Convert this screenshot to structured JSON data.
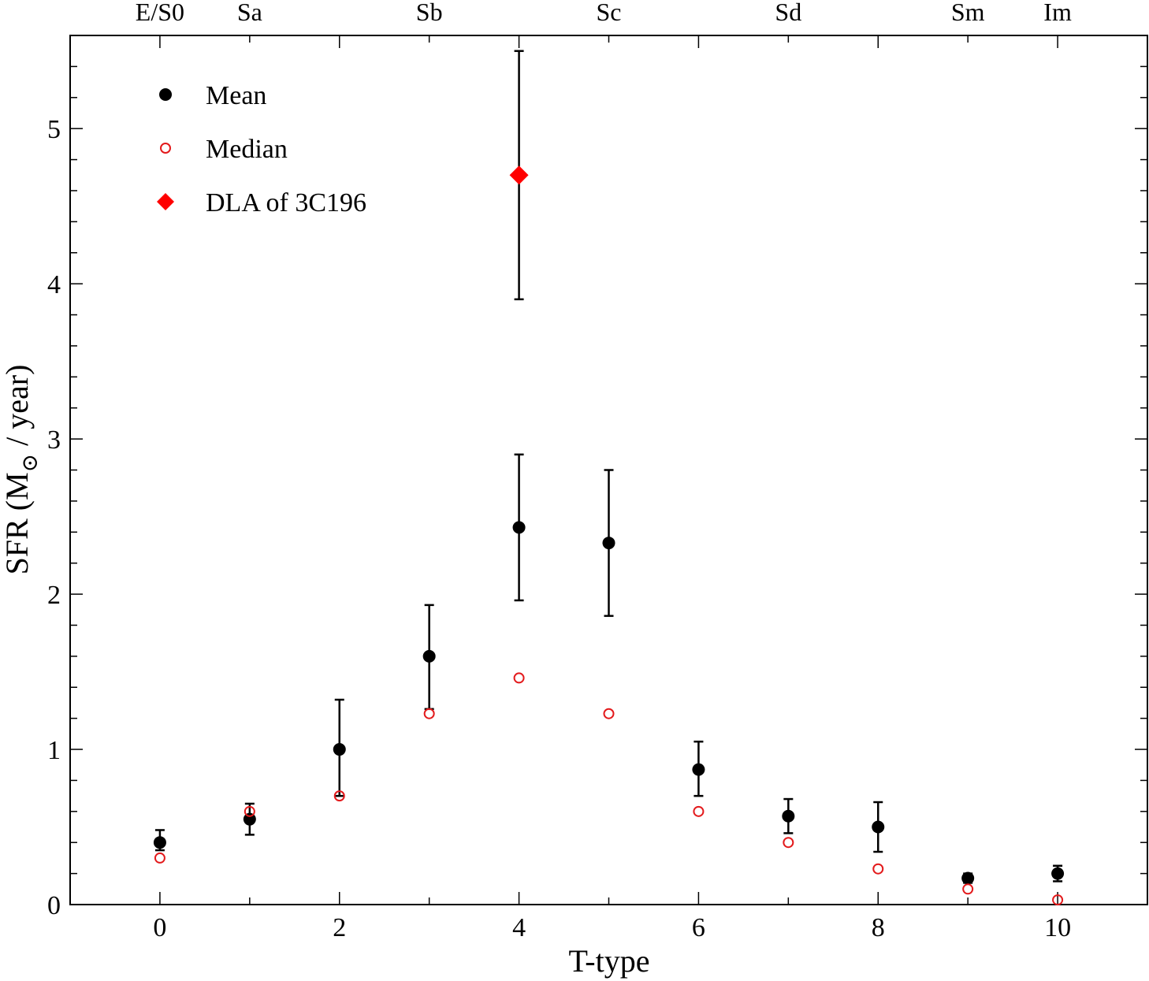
{
  "chart_data": {
    "type": "scatter",
    "xlabel": "T-type",
    "ylabel_main": "SFR (M",
    "ylabel_sun": "⊙",
    "ylabel_tail": " / year)",
    "xlim": [
      -1,
      11
    ],
    "ylim": [
      0,
      5.6
    ],
    "x_ticks": [
      0,
      2,
      4,
      6,
      8,
      10
    ],
    "y_ticks": [
      0,
      1,
      2,
      3,
      4,
      5
    ],
    "x_minor_step": 1,
    "y_minor_step": 0.2,
    "grid": false,
    "legend_position": "top-left",
    "top_axis_labels": [
      {
        "x": 0,
        "label": "E/S0"
      },
      {
        "x": 1,
        "label": "Sa"
      },
      {
        "x": 3,
        "label": "Sb"
      },
      {
        "x": 5,
        "label": "Sc"
      },
      {
        "x": 7,
        "label": "Sd"
      },
      {
        "x": 9,
        "label": "Sm"
      },
      {
        "x": 10,
        "label": "Im"
      }
    ],
    "series": [
      {
        "name": "Mean",
        "marker": "filled-circle",
        "color": "#000000",
        "points": [
          {
            "x": 0,
            "y": 0.4,
            "ylo": 0.35,
            "yhi": 0.48
          },
          {
            "x": 1,
            "y": 0.55,
            "ylo": 0.45,
            "yhi": 0.65
          },
          {
            "x": 2,
            "y": 1.0,
            "ylo": 0.7,
            "yhi": 1.32
          },
          {
            "x": 3,
            "y": 1.6,
            "ylo": 1.26,
            "yhi": 1.93
          },
          {
            "x": 4,
            "y": 2.43,
            "ylo": 1.96,
            "yhi": 2.9
          },
          {
            "x": 5,
            "y": 2.33,
            "ylo": 1.86,
            "yhi": 2.8
          },
          {
            "x": 6,
            "y": 0.87,
            "ylo": 0.7,
            "yhi": 1.05
          },
          {
            "x": 7,
            "y": 0.57,
            "ylo": 0.46,
            "yhi": 0.68
          },
          {
            "x": 8,
            "y": 0.5,
            "ylo": 0.34,
            "yhi": 0.66
          },
          {
            "x": 9,
            "y": 0.17,
            "ylo": 0.14,
            "yhi": 0.2
          },
          {
            "x": 10,
            "y": 0.2,
            "ylo": 0.15,
            "yhi": 0.25
          }
        ]
      },
      {
        "name": "Median",
        "marker": "open-circle",
        "color": "#e31a1c",
        "points": [
          {
            "x": 0,
            "y": 0.3
          },
          {
            "x": 1,
            "y": 0.6
          },
          {
            "x": 2,
            "y": 0.7
          },
          {
            "x": 3,
            "y": 1.23
          },
          {
            "x": 4,
            "y": 1.46
          },
          {
            "x": 5,
            "y": 1.23
          },
          {
            "x": 6,
            "y": 0.6
          },
          {
            "x": 7,
            "y": 0.4
          },
          {
            "x": 8,
            "y": 0.23
          },
          {
            "x": 9,
            "y": 0.1
          },
          {
            "x": 10,
            "y": 0.03
          }
        ]
      },
      {
        "name": "DLA of 3C196",
        "marker": "filled-diamond",
        "color": "#ff0000",
        "points": [
          {
            "x": 4,
            "y": 4.7,
            "ylo": 3.9,
            "yhi": 5.5
          }
        ]
      }
    ]
  }
}
